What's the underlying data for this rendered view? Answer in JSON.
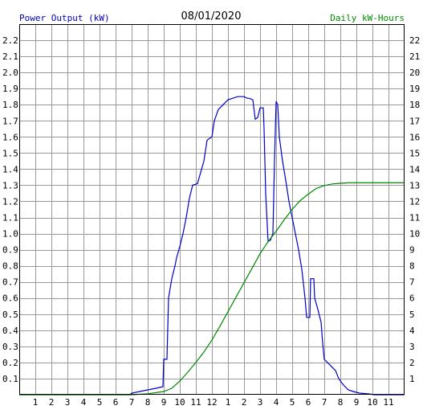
{
  "chart_data": {
    "type": "line",
    "title": "08/01/2020",
    "ylabel_left": "Power Output (kW)",
    "ylabel_right": "Daily kW-Hours",
    "x_tick_labels": [
      "1",
      "2",
      "3",
      "4",
      "5",
      "6",
      "7",
      "8",
      "9",
      "10",
      "11",
      "12",
      "1",
      "2",
      "3",
      "4",
      "5",
      "6",
      "7",
      "8",
      "9",
      "10",
      "11"
    ],
    "xlim": [
      0,
      24
    ],
    "ylim_left": [
      0,
      2.3
    ],
    "ylim_right": [
      0,
      23
    ],
    "left_ticks": [
      "0.1",
      "0.2",
      "0.3",
      "0.4",
      "0.5",
      "0.6",
      "0.7",
      "0.8",
      "0.9",
      "1.0",
      "1.1",
      "1.2",
      "1.3",
      "1.4",
      "1.5",
      "1.6",
      "1.7",
      "1.8",
      "1.9",
      "2.0",
      "2.1",
      "2.2"
    ],
    "right_ticks": [
      "1",
      "2",
      "3",
      "4",
      "5",
      "6",
      "7",
      "8",
      "9",
      "10",
      "11",
      "12",
      "13",
      "14",
      "15",
      "16",
      "17",
      "18",
      "19",
      "20",
      "21",
      "22"
    ],
    "grid": true,
    "colors": {
      "power": "#0000cc",
      "energy": "#008800",
      "grid": "#999999",
      "left_label": "#0000aa",
      "right_label": "#008800"
    },
    "series": [
      {
        "name": "Power Output (kW)",
        "axis": "left",
        "points": [
          [
            0,
            0
          ],
          [
            6.9,
            0
          ],
          [
            7.0,
            0.01
          ],
          [
            7.5,
            0.02
          ],
          [
            8.0,
            0.03
          ],
          [
            8.5,
            0.04
          ],
          [
            8.95,
            0.05
          ],
          [
            9.0,
            0.22
          ],
          [
            9.2,
            0.22
          ],
          [
            9.3,
            0.6
          ],
          [
            9.5,
            0.72
          ],
          [
            9.7,
            0.8
          ],
          [
            9.8,
            0.85
          ],
          [
            10.0,
            0.92
          ],
          [
            10.2,
            1.0
          ],
          [
            10.4,
            1.1
          ],
          [
            10.6,
            1.22
          ],
          [
            10.8,
            1.3
          ],
          [
            11.1,
            1.31
          ],
          [
            11.3,
            1.38
          ],
          [
            11.5,
            1.45
          ],
          [
            11.7,
            1.58
          ],
          [
            12.0,
            1.6
          ],
          [
            12.15,
            1.7
          ],
          [
            12.4,
            1.77
          ],
          [
            12.7,
            1.8
          ],
          [
            13.0,
            1.83
          ],
          [
            13.3,
            1.84
          ],
          [
            13.6,
            1.85
          ],
          [
            14.0,
            1.85
          ],
          [
            14.2,
            1.84
          ],
          [
            14.3,
            1.84
          ],
          [
            14.55,
            1.83
          ],
          [
            14.7,
            1.71
          ],
          [
            14.85,
            1.72
          ],
          [
            15.0,
            1.78
          ],
          [
            15.2,
            1.78
          ],
          [
            15.25,
            1.65
          ],
          [
            15.35,
            1.25
          ],
          [
            15.5,
            0.95
          ],
          [
            15.65,
            0.96
          ],
          [
            15.8,
            1.0
          ],
          [
            15.9,
            1.45
          ],
          [
            16.0,
            1.82
          ],
          [
            16.1,
            1.8
          ],
          [
            16.2,
            1.6
          ],
          [
            16.4,
            1.45
          ],
          [
            16.6,
            1.33
          ],
          [
            16.8,
            1.2
          ],
          [
            17.0,
            1.1
          ],
          [
            17.2,
            1.0
          ],
          [
            17.4,
            0.9
          ],
          [
            17.6,
            0.78
          ],
          [
            17.8,
            0.6
          ],
          [
            17.9,
            0.48
          ],
          [
            18.1,
            0.48
          ],
          [
            18.15,
            0.72
          ],
          [
            18.35,
            0.72
          ],
          [
            18.4,
            0.6
          ],
          [
            18.6,
            0.53
          ],
          [
            18.8,
            0.45
          ],
          [
            18.9,
            0.32
          ],
          [
            19.0,
            0.22
          ],
          [
            19.2,
            0.2
          ],
          [
            19.5,
            0.17
          ],
          [
            19.7,
            0.15
          ],
          [
            19.9,
            0.1
          ],
          [
            20.2,
            0.06
          ],
          [
            20.5,
            0.03
          ],
          [
            20.8,
            0.02
          ],
          [
            21.2,
            0.01
          ],
          [
            21.8,
            0.005
          ],
          [
            22.1,
            0
          ],
          [
            24,
            0
          ]
        ]
      },
      {
        "name": "Daily kW-Hours",
        "axis": "right",
        "points": [
          [
            0,
            0
          ],
          [
            7.0,
            0
          ],
          [
            8.0,
            0.06
          ],
          [
            9.0,
            0.2
          ],
          [
            9.5,
            0.4
          ],
          [
            10.0,
            0.85
          ],
          [
            10.5,
            1.4
          ],
          [
            11.0,
            2.0
          ],
          [
            11.5,
            2.65
          ],
          [
            12.0,
            3.4
          ],
          [
            12.5,
            4.25
          ],
          [
            13.0,
            5.15
          ],
          [
            13.5,
            6.05
          ],
          [
            14.0,
            6.95
          ],
          [
            14.5,
            7.85
          ],
          [
            15.0,
            8.75
          ],
          [
            15.5,
            9.5
          ],
          [
            16.0,
            10.15
          ],
          [
            16.5,
            10.85
          ],
          [
            17.0,
            11.5
          ],
          [
            17.5,
            12.05
          ],
          [
            18.0,
            12.45
          ],
          [
            18.5,
            12.8
          ],
          [
            19.0,
            12.98
          ],
          [
            19.5,
            13.08
          ],
          [
            20.0,
            13.12
          ],
          [
            20.5,
            13.15
          ],
          [
            21.0,
            13.15
          ],
          [
            22.0,
            13.15
          ],
          [
            23.0,
            13.15
          ],
          [
            24,
            13.15
          ]
        ]
      }
    ]
  }
}
